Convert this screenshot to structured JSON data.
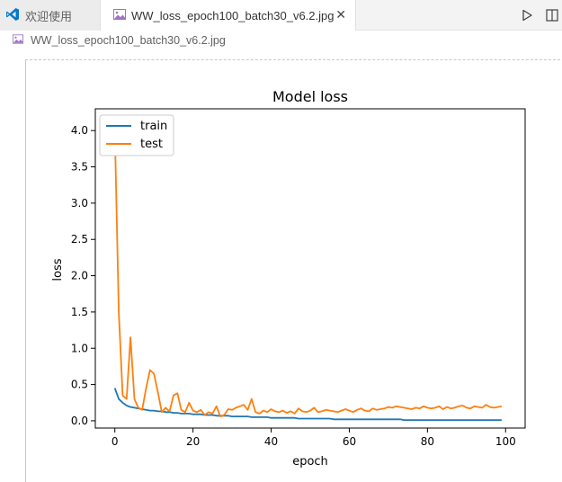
{
  "tabs": [
    {
      "label": "欢迎使用",
      "icon": "vscode-logo-icon"
    },
    {
      "label": "WW_loss_epoch100_batch30_v6.2.jpg",
      "icon": "image-file-icon",
      "active": true
    }
  ],
  "actions": {
    "run": "run-icon",
    "split": "split-editor-icon"
  },
  "breadcrumb": {
    "file": "WW_loss_epoch100_batch30_v6.2.jpg"
  },
  "colors": {
    "train": "#1f77b4",
    "test": "#ff7f0e",
    "accent": "#007acc"
  },
  "chart_data": {
    "type": "line",
    "title": "Model loss",
    "xlabel": "epoch",
    "ylabel": "loss",
    "xlim": [
      -5,
      105
    ],
    "ylim": [
      -0.1,
      4.3
    ],
    "xticks": [
      0,
      20,
      40,
      60,
      80,
      100
    ],
    "yticks": [
      0.0,
      0.5,
      1.0,
      1.5,
      2.0,
      2.5,
      3.0,
      3.5,
      4.0
    ],
    "legend": {
      "position": "top-left",
      "entries": [
        "train",
        "test"
      ]
    },
    "x": [
      0,
      1,
      2,
      3,
      4,
      5,
      6,
      7,
      8,
      9,
      10,
      11,
      12,
      13,
      14,
      15,
      16,
      17,
      18,
      19,
      20,
      21,
      22,
      23,
      24,
      25,
      26,
      27,
      28,
      29,
      30,
      31,
      32,
      33,
      34,
      35,
      36,
      37,
      38,
      39,
      40,
      41,
      42,
      43,
      44,
      45,
      46,
      47,
      48,
      49,
      50,
      51,
      52,
      53,
      54,
      55,
      56,
      57,
      58,
      59,
      60,
      61,
      62,
      63,
      64,
      65,
      66,
      67,
      68,
      69,
      70,
      71,
      72,
      73,
      74,
      75,
      76,
      77,
      78,
      79,
      80,
      81,
      82,
      83,
      84,
      85,
      86,
      87,
      88,
      89,
      90,
      91,
      92,
      93,
      94,
      95,
      96,
      97,
      98,
      99
    ],
    "series": [
      {
        "name": "train",
        "values": [
          0.45,
          0.3,
          0.25,
          0.21,
          0.19,
          0.18,
          0.17,
          0.16,
          0.15,
          0.14,
          0.14,
          0.13,
          0.13,
          0.12,
          0.12,
          0.11,
          0.11,
          0.1,
          0.1,
          0.1,
          0.09,
          0.09,
          0.09,
          0.08,
          0.08,
          0.08,
          0.07,
          0.07,
          0.07,
          0.07,
          0.06,
          0.06,
          0.06,
          0.06,
          0.06,
          0.05,
          0.05,
          0.05,
          0.05,
          0.05,
          0.04,
          0.04,
          0.04,
          0.04,
          0.04,
          0.04,
          0.04,
          0.03,
          0.03,
          0.03,
          0.03,
          0.03,
          0.03,
          0.03,
          0.03,
          0.03,
          0.02,
          0.02,
          0.02,
          0.02,
          0.02,
          0.02,
          0.02,
          0.02,
          0.02,
          0.02,
          0.02,
          0.02,
          0.02,
          0.02,
          0.02,
          0.02,
          0.02,
          0.02,
          0.01,
          0.01,
          0.01,
          0.01,
          0.01,
          0.01,
          0.01,
          0.01,
          0.01,
          0.01,
          0.01,
          0.01,
          0.01,
          0.01,
          0.01,
          0.01,
          0.01,
          0.01,
          0.01,
          0.01,
          0.01,
          0.01,
          0.01,
          0.01,
          0.01,
          0.01
        ]
      },
      {
        "name": "test",
        "values": [
          4.0,
          1.5,
          0.35,
          0.3,
          1.15,
          0.3,
          0.18,
          0.15,
          0.45,
          0.7,
          0.65,
          0.4,
          0.12,
          0.18,
          0.13,
          0.35,
          0.38,
          0.15,
          0.12,
          0.25,
          0.14,
          0.12,
          0.15,
          0.08,
          0.12,
          0.1,
          0.2,
          0.06,
          0.08,
          0.16,
          0.15,
          0.18,
          0.2,
          0.22,
          0.15,
          0.3,
          0.12,
          0.1,
          0.14,
          0.12,
          0.16,
          0.13,
          0.12,
          0.14,
          0.11,
          0.13,
          0.1,
          0.17,
          0.13,
          0.12,
          0.14,
          0.18,
          0.12,
          0.13,
          0.15,
          0.14,
          0.13,
          0.12,
          0.14,
          0.16,
          0.14,
          0.12,
          0.15,
          0.17,
          0.14,
          0.13,
          0.17,
          0.15,
          0.16,
          0.17,
          0.19,
          0.18,
          0.2,
          0.19,
          0.18,
          0.17,
          0.16,
          0.18,
          0.17,
          0.2,
          0.18,
          0.17,
          0.18,
          0.2,
          0.16,
          0.19,
          0.17,
          0.18,
          0.2,
          0.21,
          0.18,
          0.17,
          0.2,
          0.19,
          0.18,
          0.22,
          0.19,
          0.18,
          0.19,
          0.2
        ]
      }
    ]
  }
}
